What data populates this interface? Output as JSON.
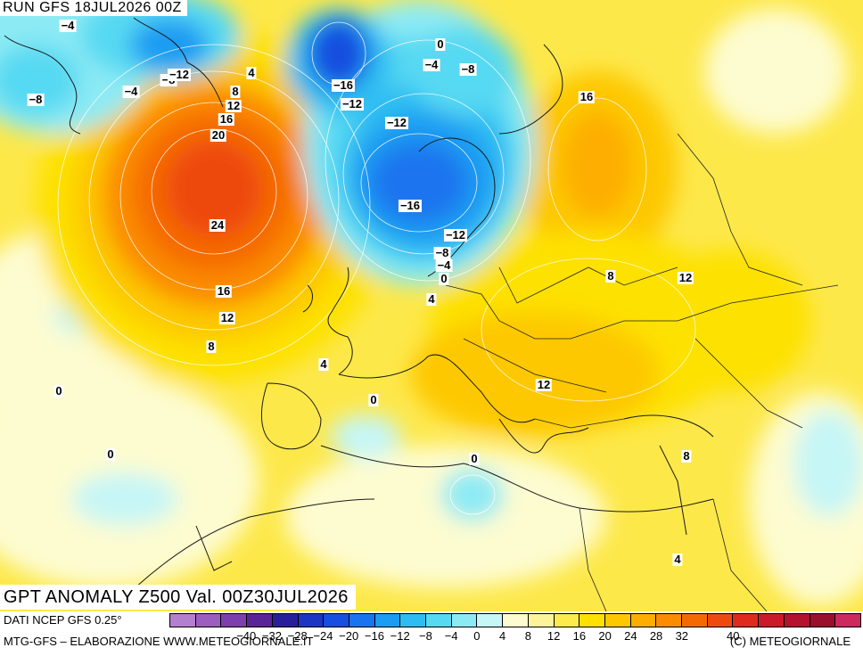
{
  "header": {
    "run_label": "RUN GFS 18JUL2026 00Z"
  },
  "title": "GPT ANOMALY Z500 Val. 00Z30JUL2026",
  "footer": {
    "data_source": "DATI NCEP GFS 0.25°",
    "credit": "MTG-GFS – ELABORAZIONE WWW.METEOGIORNALE.IT",
    "copyright": "(C) METEOGIORNALE"
  },
  "legend": {
    "ticks": [
      "-40",
      "-32",
      "-28",
      "-24",
      "-20",
      "-16",
      "-12",
      "-8",
      "-4",
      "0",
      "4",
      "8",
      "12",
      "16",
      "20",
      "24",
      "28",
      "32",
      "40"
    ],
    "colors": [
      "#b57fcf",
      "#9b5fbf",
      "#7d3fae",
      "#5a2498",
      "#2a1f9a",
      "#1d35c4",
      "#1550e0",
      "#1a74ef",
      "#1c9cf2",
      "#2dbdf2",
      "#56d9f2",
      "#8ceaf4",
      "#c6f6f6",
      "#fdfcd0",
      "#fdf49a",
      "#fdea4c",
      "#fde100",
      "#fdc800",
      "#fdae00",
      "#fb8c00",
      "#f56a00",
      "#ee4a10",
      "#e02a1c",
      "#cc1a2a",
      "#b5122e",
      "#9a0f2c",
      "#cc2a5e"
    ]
  },
  "field_labels": [
    {
      "text": "−4"
    },
    {
      "text": "−8"
    },
    {
      "text": "−4"
    },
    {
      "text": "−8"
    },
    {
      "text": "−12"
    },
    {
      "text": "4"
    },
    {
      "text": "8"
    },
    {
      "text": "12"
    },
    {
      "text": "16"
    },
    {
      "text": "20"
    },
    {
      "text": "24"
    },
    {
      "text": "16"
    },
    {
      "text": "12"
    },
    {
      "text": "8"
    },
    {
      "text": "0"
    },
    {
      "text": "0"
    },
    {
      "text": "4"
    },
    {
      "text": "−16"
    },
    {
      "text": "−12"
    },
    {
      "text": "−12"
    },
    {
      "text": "−16"
    },
    {
      "text": "0"
    },
    {
      "text": "−4"
    },
    {
      "text": "−8"
    },
    {
      "text": "16"
    },
    {
      "text": "−12"
    },
    {
      "text": "−8"
    },
    {
      "text": "−4"
    },
    {
      "text": "0"
    },
    {
      "text": "4"
    },
    {
      "text": "8"
    },
    {
      "text": "12"
    },
    {
      "text": "12"
    },
    {
      "text": "0"
    },
    {
      "text": "0"
    },
    {
      "text": "8"
    },
    {
      "text": "4"
    }
  ]
}
